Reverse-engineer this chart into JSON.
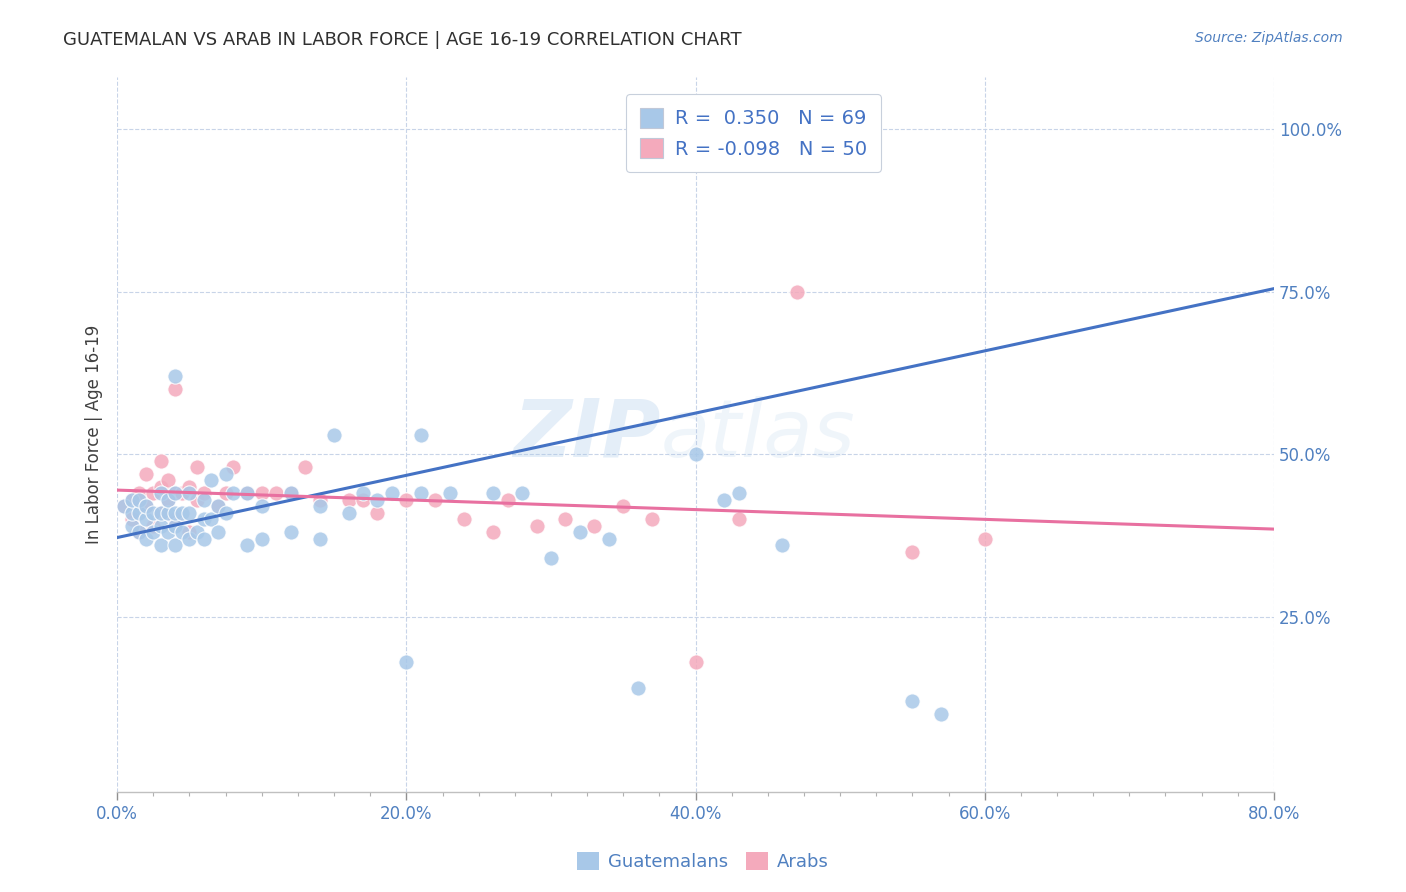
{
  "title": "GUATEMALAN VS ARAB IN LABOR FORCE | AGE 16-19 CORRELATION CHART",
  "source": "Source: ZipAtlas.com",
  "ylabel": "In Labor Force | Age 16-19",
  "xlim": [
    0.0,
    0.8
  ],
  "ylim": [
    -0.02,
    1.08
  ],
  "xtick_labels": [
    "0.0%",
    "",
    "",
    "",
    "",
    "",
    "",
    "",
    "20.0%",
    "",
    "",
    "",
    "",
    "",
    "",
    "",
    "40.0%",
    "",
    "",
    "",
    "",
    "",
    "",
    "",
    "60.0%",
    "",
    "",
    "",
    "",
    "",
    "",
    "",
    "80.0%"
  ],
  "xtick_vals": [
    0.0,
    0.025,
    0.05,
    0.075,
    0.1,
    0.125,
    0.15,
    0.175,
    0.2,
    0.225,
    0.25,
    0.275,
    0.3,
    0.325,
    0.35,
    0.375,
    0.4,
    0.425,
    0.45,
    0.475,
    0.5,
    0.525,
    0.55,
    0.575,
    0.6,
    0.625,
    0.65,
    0.675,
    0.7,
    0.725,
    0.75,
    0.775,
    0.8
  ],
  "ytick_labels": [
    "25.0%",
    "50.0%",
    "75.0%",
    "100.0%"
  ],
  "ytick_vals": [
    0.25,
    0.5,
    0.75,
    1.0
  ],
  "grid_ytick_vals": [
    0.25,
    0.5,
    0.75,
    1.0
  ],
  "grid_xtick_vals": [
    0.0,
    0.2,
    0.4,
    0.6,
    0.8
  ],
  "watermark": "ZIPatlas",
  "legend_blue_label": "Guatemalans",
  "legend_pink_label": "Arabs",
  "R_blue": 0.35,
  "N_blue": 69,
  "R_pink": -0.098,
  "N_pink": 50,
  "blue_color": "#A8C8E8",
  "pink_color": "#F4AABC",
  "blue_line_color": "#4472C4",
  "pink_line_color": "#E870A0",
  "background_color": "#FFFFFF",
  "grid_color": "#C8D4E8",
  "title_color": "#303030",
  "axis_label_color": "#404040",
  "tick_color": "#5080C0",
  "blue_line_start_y": 0.372,
  "blue_line_end_y": 0.755,
  "pink_line_start_y": 0.445,
  "pink_line_end_y": 0.385,
  "blue_scatter_x": [
    0.005,
    0.01,
    0.01,
    0.01,
    0.015,
    0.015,
    0.015,
    0.02,
    0.02,
    0.02,
    0.025,
    0.025,
    0.03,
    0.03,
    0.03,
    0.03,
    0.035,
    0.035,
    0.035,
    0.04,
    0.04,
    0.04,
    0.04,
    0.04,
    0.045,
    0.045,
    0.05,
    0.05,
    0.05,
    0.055,
    0.06,
    0.06,
    0.06,
    0.065,
    0.065,
    0.07,
    0.07,
    0.075,
    0.075,
    0.08,
    0.09,
    0.09,
    0.1,
    0.1,
    0.12,
    0.12,
    0.14,
    0.14,
    0.15,
    0.16,
    0.17,
    0.18,
    0.19,
    0.2,
    0.21,
    0.21,
    0.23,
    0.26,
    0.28,
    0.3,
    0.32,
    0.34,
    0.36,
    0.4,
    0.42,
    0.43,
    0.46,
    0.55,
    0.57
  ],
  "blue_scatter_y": [
    0.42,
    0.39,
    0.41,
    0.43,
    0.38,
    0.41,
    0.43,
    0.37,
    0.4,
    0.42,
    0.38,
    0.41,
    0.36,
    0.39,
    0.41,
    0.44,
    0.38,
    0.41,
    0.43,
    0.36,
    0.39,
    0.41,
    0.44,
    0.62,
    0.38,
    0.41,
    0.37,
    0.41,
    0.44,
    0.38,
    0.37,
    0.4,
    0.43,
    0.4,
    0.46,
    0.38,
    0.42,
    0.41,
    0.47,
    0.44,
    0.36,
    0.44,
    0.37,
    0.42,
    0.38,
    0.44,
    0.37,
    0.42,
    0.53,
    0.41,
    0.44,
    0.43,
    0.44,
    0.18,
    0.44,
    0.53,
    0.44,
    0.44,
    0.44,
    0.34,
    0.38,
    0.37,
    0.14,
    0.5,
    0.43,
    0.44,
    0.36,
    0.12,
    0.1
  ],
  "pink_scatter_x": [
    0.005,
    0.01,
    0.01,
    0.015,
    0.015,
    0.02,
    0.02,
    0.025,
    0.025,
    0.03,
    0.03,
    0.03,
    0.035,
    0.035,
    0.04,
    0.04,
    0.04,
    0.045,
    0.05,
    0.05,
    0.055,
    0.055,
    0.06,
    0.07,
    0.075,
    0.08,
    0.09,
    0.1,
    0.11,
    0.12,
    0.13,
    0.14,
    0.16,
    0.17,
    0.18,
    0.2,
    0.22,
    0.24,
    0.26,
    0.27,
    0.29,
    0.31,
    0.33,
    0.35,
    0.37,
    0.4,
    0.43,
    0.47,
    0.55,
    0.6
  ],
  "pink_scatter_y": [
    0.42,
    0.4,
    0.43,
    0.38,
    0.44,
    0.42,
    0.47,
    0.39,
    0.44,
    0.41,
    0.45,
    0.49,
    0.43,
    0.46,
    0.4,
    0.44,
    0.6,
    0.44,
    0.38,
    0.45,
    0.43,
    0.48,
    0.44,
    0.42,
    0.44,
    0.48,
    0.44,
    0.44,
    0.44,
    0.44,
    0.48,
    0.43,
    0.43,
    0.43,
    0.41,
    0.43,
    0.43,
    0.4,
    0.38,
    0.43,
    0.39,
    0.4,
    0.39,
    0.42,
    0.4,
    0.18,
    0.4,
    0.75,
    0.35,
    0.37
  ]
}
